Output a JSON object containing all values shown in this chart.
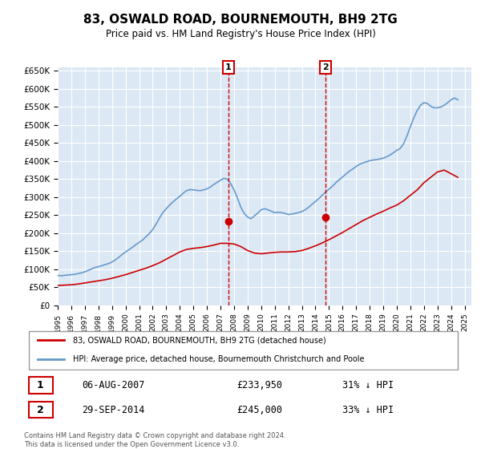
{
  "title": "83, OSWALD ROAD, BOURNEMOUTH, BH9 2TG",
  "subtitle": "Price paid vs. HM Land Registry's House Price Index (HPI)",
  "background_color": "#dce9f5",
  "plot_bg_color": "#dce9f5",
  "y_ticks": [
    0,
    50000,
    100000,
    150000,
    200000,
    250000,
    300000,
    350000,
    400000,
    450000,
    500000,
    550000,
    600000,
    650000
  ],
  "y_tick_labels": [
    "£0",
    "£50K",
    "£100K",
    "£150K",
    "£200K",
    "£250K",
    "£300K",
    "£350K",
    "£400K",
    "£450K",
    "£500K",
    "£550K",
    "£600K",
    "£650K"
  ],
  "x_start_year": 1995,
  "x_end_year": 2025,
  "red_line_color": "#cc0000",
  "blue_line_color": "#6699cc",
  "marker1_date": "06-AUG-2007",
  "marker1_price": 233950,
  "marker1_hpi_diff": "31% ↓ HPI",
  "marker2_date": "29-SEP-2014",
  "marker2_price": 245000,
  "marker2_hpi_diff": "33% ↓ HPI",
  "legend_red": "83, OSWALD ROAD, BOURNEMOUTH, BH9 2TG (detached house)",
  "legend_blue": "HPI: Average price, detached house, Bournemouth Christchurch and Poole",
  "footer1": "Contains HM Land Registry data © Crown copyright and database right 2024.",
  "footer2": "This data is licensed under the Open Government Licence v3.0.",
  "hpi_x": [
    1995.0,
    1995.25,
    1995.5,
    1995.75,
    1996.0,
    1996.25,
    1996.5,
    1996.75,
    1997.0,
    1997.25,
    1997.5,
    1997.75,
    1998.0,
    1998.25,
    1998.5,
    1998.75,
    1999.0,
    1999.25,
    1999.5,
    1999.75,
    2000.0,
    2000.25,
    2000.5,
    2000.75,
    2001.0,
    2001.25,
    2001.5,
    2001.75,
    2002.0,
    2002.25,
    2002.5,
    2002.75,
    2003.0,
    2003.25,
    2003.5,
    2003.75,
    2004.0,
    2004.25,
    2004.5,
    2004.75,
    2005.0,
    2005.25,
    2005.5,
    2005.75,
    2006.0,
    2006.25,
    2006.5,
    2006.75,
    2007.0,
    2007.25,
    2007.5,
    2007.75,
    2008.0,
    2008.25,
    2008.5,
    2008.75,
    2009.0,
    2009.25,
    2009.5,
    2009.75,
    2010.0,
    2010.25,
    2010.5,
    2010.75,
    2011.0,
    2011.25,
    2011.5,
    2011.75,
    2012.0,
    2012.25,
    2012.5,
    2012.75,
    2013.0,
    2013.25,
    2013.5,
    2013.75,
    2014.0,
    2014.25,
    2014.5,
    2014.75,
    2015.0,
    2015.25,
    2015.5,
    2015.75,
    2016.0,
    2016.25,
    2016.5,
    2016.75,
    2017.0,
    2017.25,
    2017.5,
    2017.75,
    2018.0,
    2018.25,
    2018.5,
    2018.75,
    2019.0,
    2019.25,
    2019.5,
    2019.75,
    2020.0,
    2020.25,
    2020.5,
    2020.75,
    2021.0,
    2021.25,
    2021.5,
    2021.75,
    2022.0,
    2022.25,
    2022.5,
    2022.75,
    2023.0,
    2023.25,
    2023.5,
    2023.75,
    2024.0,
    2024.25,
    2024.5
  ],
  "hpi_y": [
    83000,
    82000,
    83000,
    84000,
    85000,
    86000,
    88000,
    90000,
    93000,
    97000,
    101000,
    105000,
    107000,
    110000,
    113000,
    116000,
    120000,
    126000,
    133000,
    141000,
    148000,
    154000,
    161000,
    168000,
    174000,
    181000,
    190000,
    199000,
    210000,
    225000,
    242000,
    257000,
    268000,
    278000,
    287000,
    295000,
    302000,
    311000,
    318000,
    321000,
    320000,
    319000,
    318000,
    320000,
    323000,
    328000,
    335000,
    341000,
    347000,
    352000,
    350000,
    338000,
    320000,
    298000,
    272000,
    255000,
    245000,
    240000,
    248000,
    256000,
    265000,
    268000,
    265000,
    261000,
    257000,
    258000,
    257000,
    255000,
    252000,
    253000,
    255000,
    257000,
    260000,
    265000,
    272000,
    280000,
    288000,
    296000,
    305000,
    314000,
    322000,
    330000,
    340000,
    348000,
    356000,
    364000,
    372000,
    378000,
    385000,
    391000,
    395000,
    398000,
    401000,
    403000,
    404000,
    406000,
    408000,
    412000,
    417000,
    423000,
    430000,
    435000,
    448000,
    470000,
    495000,
    520000,
    540000,
    555000,
    562000,
    560000,
    552000,
    548000,
    548000,
    550000,
    555000,
    562000,
    570000,
    575000,
    570000
  ],
  "red_x": [
    1995.0,
    1995.5,
    1996.0,
    1996.5,
    1997.0,
    1997.5,
    1998.0,
    1998.5,
    1999.0,
    1999.5,
    2000.0,
    2000.5,
    2001.0,
    2001.5,
    2002.0,
    2002.5,
    2003.0,
    2003.5,
    2004.0,
    2004.5,
    2005.0,
    2005.5,
    2006.0,
    2006.5,
    2007.0,
    2007.5,
    2008.0,
    2008.5,
    2009.0,
    2009.5,
    2010.0,
    2010.5,
    2011.0,
    2011.5,
    2012.0,
    2012.5,
    2013.0,
    2013.5,
    2014.0,
    2014.5,
    2015.0,
    2015.5,
    2016.0,
    2016.5,
    2017.0,
    2017.5,
    2018.0,
    2018.5,
    2019.0,
    2019.5,
    2020.0,
    2020.5,
    2021.0,
    2021.5,
    2022.0,
    2022.5,
    2023.0,
    2023.5,
    2024.0,
    2024.5
  ],
  "red_y": [
    55000,
    56000,
    57000,
    59000,
    62000,
    65000,
    68000,
    71000,
    75000,
    80000,
    85000,
    91000,
    97000,
    103000,
    110000,
    118000,
    128000,
    138000,
    148000,
    155000,
    158000,
    160000,
    163000,
    167000,
    172000,
    172000,
    170000,
    163000,
    152000,
    145000,
    143000,
    145000,
    147000,
    148000,
    148000,
    149000,
    152000,
    158000,
    165000,
    173000,
    182000,
    192000,
    202000,
    213000,
    224000,
    235000,
    244000,
    253000,
    261000,
    270000,
    278000,
    290000,
    305000,
    320000,
    340000,
    355000,
    370000,
    375000,
    365000,
    355000
  ],
  "marker1_x": 2007.583,
  "marker2_x": 2014.75
}
